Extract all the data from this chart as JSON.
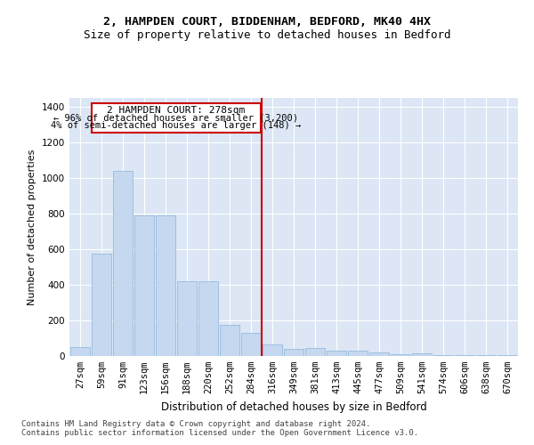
{
  "title1": "2, HAMPDEN COURT, BIDDENHAM, BEDFORD, MK40 4HX",
  "title2": "Size of property relative to detached houses in Bedford",
  "xlabel": "Distribution of detached houses by size in Bedford",
  "ylabel": "Number of detached properties",
  "categories": [
    "27sqm",
    "59sqm",
    "91sqm",
    "123sqm",
    "156sqm",
    "188sqm",
    "220sqm",
    "252sqm",
    "284sqm",
    "316sqm",
    "349sqm",
    "381sqm",
    "413sqm",
    "445sqm",
    "477sqm",
    "509sqm",
    "541sqm",
    "574sqm",
    "606sqm",
    "638sqm",
    "670sqm"
  ],
  "values": [
    50,
    575,
    1040,
    790,
    790,
    420,
    420,
    175,
    130,
    65,
    40,
    45,
    30,
    30,
    22,
    12,
    13,
    5,
    5,
    5,
    5
  ],
  "bar_color": "#c5d8f0",
  "bar_edgecolor": "#8ab4d8",
  "vline_color": "#cc0000",
  "annotation_title": "2 HAMPDEN COURT: 278sqm",
  "annotation_line1": "← 96% of detached houses are smaller (3,200)",
  "annotation_line2": "4% of semi-detached houses are larger (148) →",
  "annotation_box_color": "#cc0000",
  "ylim": [
    0,
    1450
  ],
  "yticks": [
    0,
    200,
    400,
    600,
    800,
    1000,
    1200,
    1400
  ],
  "background_color": "#dce6f5",
  "footer1": "Contains HM Land Registry data © Crown copyright and database right 2024.",
  "footer2": "Contains public sector information licensed under the Open Government Licence v3.0.",
  "title1_fontsize": 9.5,
  "title2_fontsize": 9,
  "xlabel_fontsize": 8.5,
  "ylabel_fontsize": 8,
  "tick_fontsize": 7.5,
  "footer_fontsize": 6.5
}
